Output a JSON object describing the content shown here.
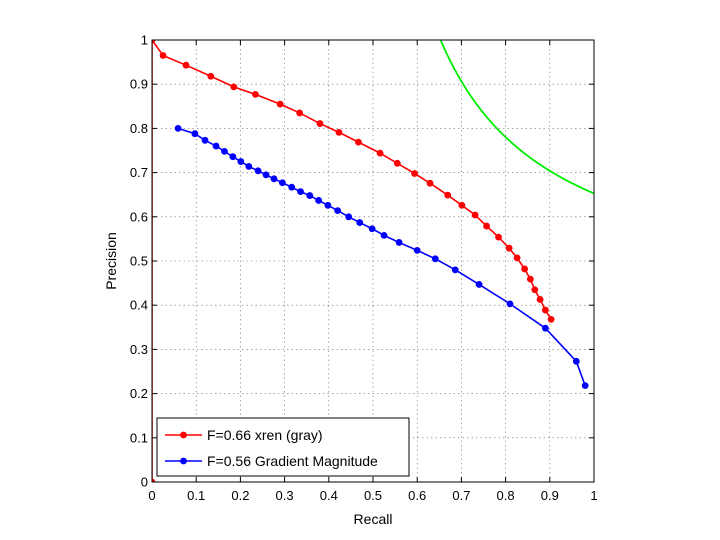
{
  "chart_data": {
    "type": "line",
    "title": "",
    "xlabel": "Recall",
    "ylabel": "Precision",
    "xlim": [
      0,
      1
    ],
    "ylim": [
      0,
      1
    ],
    "grid": true,
    "legend_position": "bottom-left",
    "xticks": [
      "0",
      "0.1",
      "0.2",
      "0.3",
      "0.4",
      "0.5",
      "0.6",
      "0.7",
      "0.8",
      "0.9",
      "1"
    ],
    "yticks": [
      "0",
      "0.1",
      "0.2",
      "0.3",
      "0.4",
      "0.5",
      "0.6",
      "0.7",
      "0.8",
      "0.9",
      "1"
    ],
    "series": [
      {
        "name": "F=0.66 xren (gray)",
        "color": "#ff0000",
        "x": [
          0.0,
          0.0,
          0.025,
          0.077,
          0.133,
          0.185,
          0.234,
          0.29,
          0.334,
          0.38,
          0.423,
          0.467,
          0.516,
          0.555,
          0.594,
          0.629,
          0.669,
          0.701,
          0.731,
          0.757,
          0.784,
          0.808,
          0.826,
          0.843,
          0.856,
          0.866,
          0.878,
          0.89,
          0.903
        ],
        "y": [
          0.0,
          1.0,
          0.965,
          0.943,
          0.918,
          0.894,
          0.877,
          0.855,
          0.835,
          0.811,
          0.791,
          0.769,
          0.744,
          0.721,
          0.698,
          0.676,
          0.649,
          0.626,
          0.604,
          0.579,
          0.554,
          0.529,
          0.507,
          0.482,
          0.459,
          0.435,
          0.413,
          0.389,
          0.368
        ]
      },
      {
        "name": "F=0.56 Gradient Magnitude",
        "color": "#0000ff",
        "x": [
          0.059,
          0.097,
          0.12,
          0.145,
          0.164,
          0.183,
          0.201,
          0.219,
          0.24,
          0.258,
          0.276,
          0.295,
          0.316,
          0.336,
          0.357,
          0.377,
          0.398,
          0.42,
          0.445,
          0.47,
          0.498,
          0.525,
          0.559,
          0.6,
          0.641,
          0.686,
          0.74,
          0.81,
          0.89,
          0.96,
          0.98
        ],
        "y": [
          0.8,
          0.788,
          0.773,
          0.76,
          0.748,
          0.736,
          0.725,
          0.714,
          0.704,
          0.695,
          0.686,
          0.677,
          0.667,
          0.657,
          0.648,
          0.637,
          0.626,
          0.614,
          0.6,
          0.587,
          0.573,
          0.558,
          0.542,
          0.524,
          0.505,
          0.48,
          0.447,
          0.403,
          0.348,
          0.273,
          0.218
        ]
      },
      {
        "name": "",
        "color": "#00ee00",
        "f_value": 0.79
      }
    ]
  }
}
